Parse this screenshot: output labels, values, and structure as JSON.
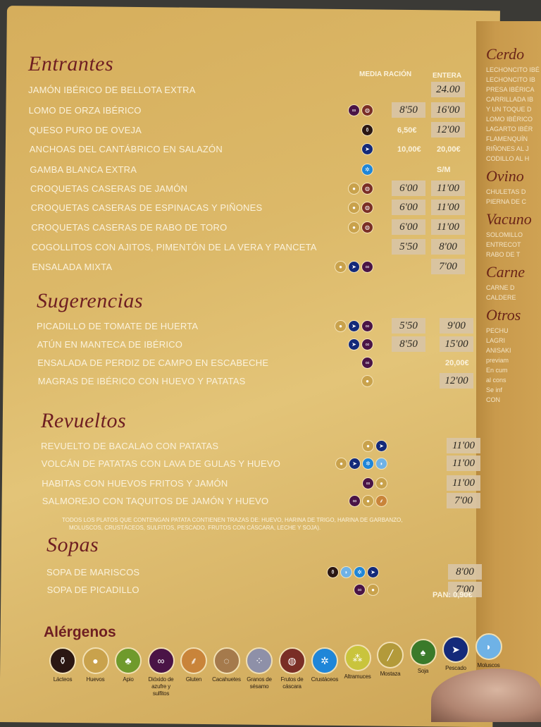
{
  "colors": {
    "page": "#dcb969",
    "title": "#6e1e22",
    "text": "#fbf2dc"
  },
  "columns": {
    "media": "MEDIA RACIÓN",
    "entera": "ENTERA"
  },
  "sections": [
    {
      "title": "Entrantes",
      "items": [
        {
          "name": "JAMÓN IBÉRICO DE BELLOTA EXTRA",
          "allergens": [],
          "media": "",
          "entera": "24.00",
          "entera_tape": true
        },
        {
          "name": "LOMO DE ORZA IBÉRICO",
          "allergens": [
            "sulfitos",
            "frutos-cascara"
          ],
          "media": "8'50",
          "media_tape": true,
          "entera": "16'00",
          "entera_tape": true
        },
        {
          "name": "QUESO PURO DE OVEJA",
          "allergens": [
            "lacteos"
          ],
          "media": "6,50€",
          "entera": "12'00",
          "entera_tape": true
        },
        {
          "name": "ANCHOAS DEL CANTÁBRICO EN SALAZÓN",
          "allergens": [
            "pescado"
          ],
          "media": "10,00€",
          "entera": "20,00€"
        },
        {
          "name": "GAMBA BLANCA EXTRA",
          "allergens": [
            "crustaceos"
          ],
          "media": "",
          "entera": "S/M"
        },
        {
          "name": "CROQUETAS CASERAS DE JAMÓN",
          "allergens": [
            "huevos",
            "frutos-cascara"
          ],
          "media": "6'00",
          "media_tape": true,
          "entera": "11'00",
          "entera_tape": true
        },
        {
          "name": "CROQUETAS CASERAS DE ESPINACAS Y PIÑONES",
          "allergens": [
            "huevos",
            "frutos-cascara"
          ],
          "media": "6'00",
          "media_tape": true,
          "entera": "11'00",
          "entera_tape": true
        },
        {
          "name": "CROQUETAS CASERAS DE RABO DE TORO",
          "allergens": [
            "huevos",
            "frutos-cascara"
          ],
          "media": "6'00",
          "media_tape": true,
          "entera": "11'00",
          "entera_tape": true
        },
        {
          "name": "COGOLLITOS CON AJITOS, PIMENTÓN DE LA VERA Y PANCETA",
          "allergens": [],
          "media": "5'50",
          "media_tape": true,
          "entera": "8'00",
          "entera_tape": true
        },
        {
          "name": "ENSALADA MIXTA",
          "allergens": [
            "huevos",
            "pescado",
            "sulfitos"
          ],
          "media": "",
          "entera": "7'00",
          "entera_tape": true
        }
      ]
    },
    {
      "title": "Sugerencias",
      "items": [
        {
          "name": "PICADILLO DE TOMATE DE HUERTA",
          "allergens": [
            "huevos",
            "pescado",
            "sulfitos"
          ],
          "media": "5'50",
          "media_tape": true,
          "entera": "9'00",
          "entera_tape": true
        },
        {
          "name": "ATÚN EN MANTECA DE IBÉRICO",
          "allergens": [
            "pescado",
            "sulfitos"
          ],
          "media": "8'50",
          "media_tape": true,
          "entera": "15'00",
          "entera_tape": true
        },
        {
          "name": "ENSALADA DE PERDIZ DE CAMPO EN ESCABECHE",
          "allergens": [
            "sulfitos"
          ],
          "media": "",
          "entera": "20,00€"
        },
        {
          "name": "MAGRAS DE IBÉRICO CON HUEVO Y PATATAS",
          "allergens": [
            "huevos"
          ],
          "media": "",
          "entera": "12'00",
          "entera_tape": true
        }
      ]
    },
    {
      "title": "Revueltos",
      "items": [
        {
          "name": "REVUELTO DE BACALAO CON PATATAS",
          "allergens": [
            "huevos",
            "pescado"
          ],
          "media": "",
          "entera": "11'00",
          "entera_tape": true
        },
        {
          "name": "VOLCÁN DE PATATAS CON LAVA DE GULAS Y HUEVO",
          "allergens": [
            "huevos",
            "pescado",
            "crustaceos",
            "moluscos"
          ],
          "media": "",
          "entera": "11'00",
          "entera_tape": true
        },
        {
          "name": "HABITAS CON HUEVOS FRITOS Y JAMÓN",
          "allergens": [
            "sulfitos",
            "huevos"
          ],
          "media": "",
          "entera": "11'00",
          "entera_tape": true
        },
        {
          "name": "SALMOREJO CON TAQUITOS DE JAMÓN Y HUEVO",
          "allergens": [
            "sulfitos",
            "huevos",
            "gluten"
          ],
          "media": "",
          "entera": "7'00",
          "entera_tape": true
        }
      ]
    },
    {
      "title": "Sopas",
      "items": [
        {
          "name": "SOPA DE MARISCOS",
          "allergens": [
            "lacteos",
            "moluscos",
            "crustaceos",
            "pescado"
          ],
          "media": "",
          "entera": "8'00",
          "entera_tape": true
        },
        {
          "name": "SOPA DE PICADILLO",
          "allergens": [
            "sulfitos",
            "huevos"
          ],
          "media": "",
          "entera": "7'00",
          "entera_tape": true
        }
      ]
    }
  ],
  "note": [
    "TODOS LOS PLATOS QUE CONTENGAN PATATA CONTIENEN TRAZAS DE: HUEVO, HARINA DE TRIGO, HARINA DE GARBANZO,",
    "MOLUSCOS, CRUSTÁCEOS, SULFITOS, PESCADO, FRUTOS  CON CÁSCARA, LECHE Y SOJA)."
  ],
  "pan": "PAN: 0,90€",
  "allergens_title": "Alérgenos",
  "allergen_legend": [
    {
      "id": "lacteos",
      "label": "Lácteos",
      "color": "#2b1713"
    },
    {
      "id": "huevos",
      "label": "Huevos",
      "color": "#c9a24c"
    },
    {
      "id": "apio",
      "label": "Apio",
      "color": "#6f9a2c"
    },
    {
      "id": "sulfitos",
      "label": "Dióxido de azufre y sulfitos",
      "color": "#4a1446"
    },
    {
      "id": "gluten",
      "label": "Gluten",
      "color": "#c9843a"
    },
    {
      "id": "cacahuetes",
      "label": "Cacahuetes",
      "color": "#a57a4c"
    },
    {
      "id": "sesamo",
      "label": "Granos de sésamo",
      "color": "#8e90a8"
    },
    {
      "id": "frutos-cascara",
      "label": "Frutos de cáscara",
      "color": "#7a2e26"
    },
    {
      "id": "crustaceos",
      "label": "Crustáceos",
      "color": "#1f86d8"
    },
    {
      "id": "altramuces",
      "label": "Altramuces",
      "color": "#c9c43c"
    },
    {
      "id": "mostaza",
      "label": "Mostaza",
      "color": "#b39a3a"
    },
    {
      "id": "soja",
      "label": "Soja",
      "color": "#3a7a2a"
    },
    {
      "id": "pescado",
      "label": "Pescado",
      "color": "#142a7a"
    },
    {
      "id": "moluscos",
      "label": "Moluscos",
      "color": "#6fb2e6"
    }
  ],
  "right_page": {
    "titles": [
      "Cerdo",
      "Ovino",
      "Vacuno",
      "Carne",
      "Otros"
    ],
    "items": [
      "LECHONCITO IBÉ",
      "LECHONCITO IB",
      "PRESA IBÉRICA",
      "CARRILLADA IB",
      "Y UN TOQUE D",
      "LOMO IBÉRICO",
      "LAGARTO IBÉR",
      "FLAMENQUÍN",
      "RIÑONES AL J",
      "CODILLO AL H",
      "CHULETAS D",
      "PIERNA DE C",
      "SOLOMILLO",
      "ENTRECOT",
      "RABO DE T",
      "CARNE D",
      "CALDERE",
      "PECHU",
      "LAGRI",
      "ANISAKI",
      "previam",
      "En cum",
      "al cons",
      "Se inf",
      "CON"
    ]
  }
}
